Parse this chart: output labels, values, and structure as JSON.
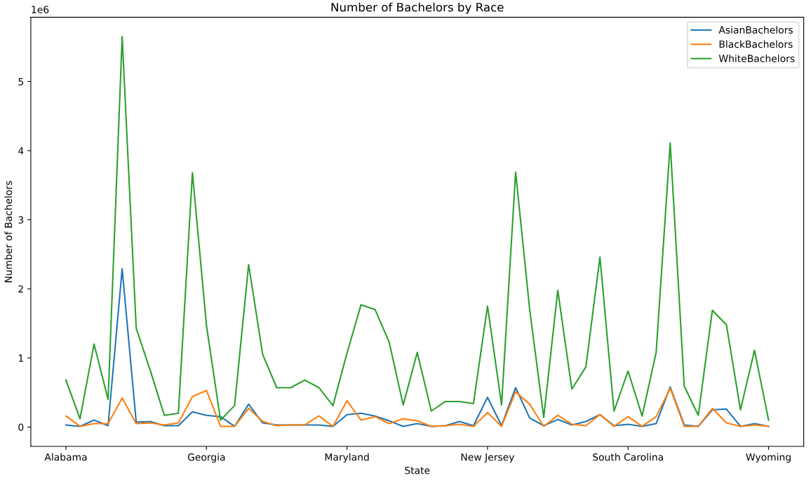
{
  "chart_data": {
    "type": "line",
    "title": "Number of Bachelors by Race",
    "xlabel": "State",
    "ylabel": "Number of Bachelors",
    "categories": [
      "Alabama",
      null,
      null,
      null,
      null,
      null,
      null,
      null,
      null,
      null,
      "Georgia",
      null,
      null,
      null,
      null,
      null,
      null,
      null,
      null,
      null,
      "Maryland",
      null,
      null,
      null,
      null,
      null,
      null,
      null,
      null,
      null,
      "New Jersey",
      null,
      null,
      null,
      null,
      null,
      null,
      null,
      null,
      null,
      "South Carolina",
      null,
      null,
      null,
      null,
      null,
      null,
      null,
      null,
      null,
      "Wyoming"
    ],
    "series": [
      {
        "name": "AsianBachelors",
        "color": "#1f77b4",
        "values": [
          0.03,
          0.01,
          0.1,
          0.02,
          2.29,
          0.07,
          0.08,
          0.02,
          0.02,
          0.22,
          0.17,
          0.15,
          0.01,
          0.33,
          0.06,
          0.03,
          0.03,
          0.03,
          0.03,
          0.01,
          0.18,
          0.2,
          0.16,
          0.09,
          0.01,
          0.05,
          0.01,
          0.02,
          0.08,
          0.02,
          0.43,
          0.02,
          0.57,
          0.13,
          0.02,
          0.11,
          0.03,
          0.08,
          0.18,
          0.02,
          0.04,
          0.01,
          0.05,
          0.58,
          0.03,
          0.01,
          0.25,
          0.26,
          0.01,
          0.05,
          0.01
        ]
      },
      {
        "name": "BlackBachelors",
        "color": "#ff7f0e",
        "values": [
          0.16,
          0.01,
          0.05,
          0.05,
          0.42,
          0.05,
          0.06,
          0.03,
          0.06,
          0.44,
          0.53,
          0.01,
          0.01,
          0.27,
          0.08,
          0.02,
          0.03,
          0.03,
          0.16,
          0.01,
          0.38,
          0.1,
          0.15,
          0.05,
          0.12,
          0.09,
          0.01,
          0.02,
          0.04,
          0.01,
          0.21,
          0.01,
          0.51,
          0.33,
          0.01,
          0.17,
          0.04,
          0.02,
          0.18,
          0.01,
          0.15,
          0.01,
          0.15,
          0.56,
          0.01,
          0.01,
          0.27,
          0.06,
          0.01,
          0.03,
          0.01
        ]
      },
      {
        "name": "WhiteBachelors",
        "color": "#2ca02c",
        "values": [
          0.68,
          0.12,
          1.2,
          0.4,
          5.65,
          1.43,
          0.82,
          0.17,
          0.2,
          3.68,
          1.47,
          0.1,
          0.31,
          2.35,
          1.05,
          0.57,
          0.57,
          0.68,
          0.57,
          0.31,
          1.07,
          1.77,
          1.7,
          1.23,
          0.32,
          1.08,
          0.23,
          0.37,
          0.37,
          0.34,
          1.75,
          0.32,
          3.69,
          1.7,
          0.14,
          1.98,
          0.55,
          0.87,
          2.46,
          0.23,
          0.81,
          0.16,
          1.08,
          4.11,
          0.59,
          0.17,
          1.69,
          1.48,
          0.25,
          1.11,
          0.1
        ]
      }
    ],
    "ylim": [
      -0.28,
      5.93
    ],
    "yticks": [
      0,
      1,
      2,
      3,
      4,
      5
    ],
    "annotations": [
      "1e6"
    ],
    "legend": "top right",
    "grid": false,
    "marker": "none",
    "line_style": "solid"
  }
}
